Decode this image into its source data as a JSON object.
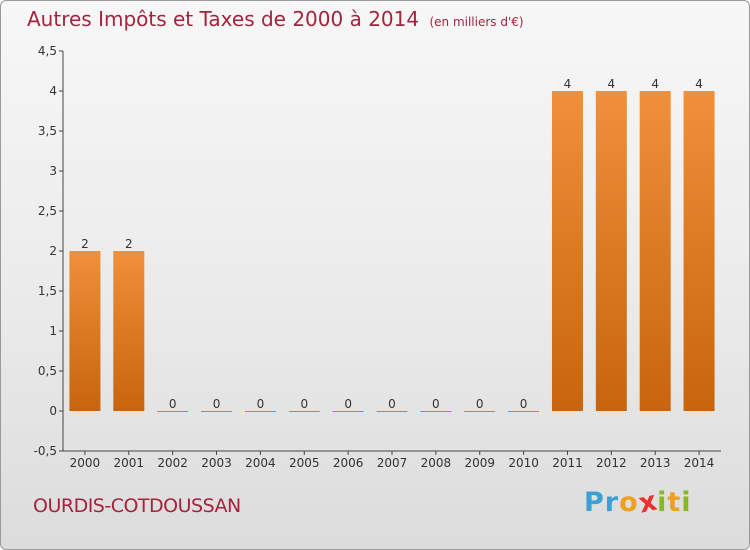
{
  "title": "Autres Impôts et Taxes de 2000 à 2014",
  "subtitle": "(en milliers d'€)",
  "commune": "OURDIS-COTDOUSSAN",
  "logo": {
    "letters": [
      "P",
      "r",
      "o",
      "x",
      "i",
      "t",
      "i"
    ],
    "colors": [
      "#3aa0d8",
      "#3aa0d8",
      "#f0a020",
      "#e83030",
      "#8ab820",
      "#f0a020",
      "#8ab820"
    ]
  },
  "colors": {
    "bar": "#f0903a",
    "bar_dark": "#c8640e",
    "title": "#a3243c"
  },
  "chart_data": {
    "type": "bar",
    "title": "Autres Impôts et Taxes de 2000 à 2014",
    "xlabel": "",
    "ylabel": "",
    "categories": [
      "2000",
      "2001",
      "2002",
      "2003",
      "2004",
      "2005",
      "2006",
      "2007",
      "2008",
      "2009",
      "2010",
      "2011",
      "2012",
      "2013",
      "2014"
    ],
    "values": [
      2,
      2,
      0,
      0,
      0,
      0,
      0,
      0,
      0,
      0,
      0,
      4,
      4,
      4,
      4
    ],
    "data_labels": [
      "2",
      "2",
      "0",
      "0",
      "0",
      "0",
      "0",
      "0",
      "0",
      "0",
      "0",
      "4",
      "4",
      "4",
      "4"
    ],
    "ylim": [
      -0.5,
      4.5
    ],
    "yticks": [
      -0.5,
      0,
      0.5,
      1,
      1.5,
      2,
      2.5,
      3,
      3.5,
      4,
      4.5
    ],
    "ytick_labels": [
      "-0,5",
      "0",
      "0,5",
      "1",
      "1,5",
      "2",
      "2,5",
      "3",
      "3,5",
      "4",
      "4,5"
    ],
    "grid": false,
    "legend": "none"
  }
}
